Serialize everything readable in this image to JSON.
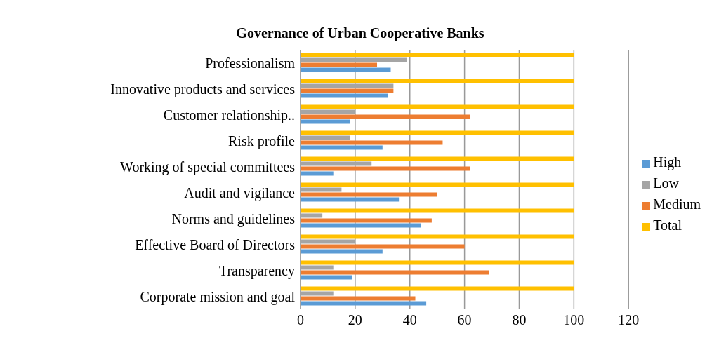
{
  "chart_data": {
    "type": "bar",
    "orientation": "horizontal",
    "title": "Governance of Urban Cooperative Banks",
    "categories": [
      "Professionalism",
      "Innovative products and services",
      "Customer relationship..",
      "Risk profile",
      "Working of special committees",
      "Audit and vigilance",
      "Norms and guidelines",
      "Effective Board of Directors",
      "Transparency",
      "Corporate mission and goal"
    ],
    "series": [
      {
        "name": "Total",
        "color": "#ffc000",
        "values": [
          100,
          100,
          100,
          100,
          100,
          100,
          100,
          100,
          100,
          100
        ]
      },
      {
        "name": "Low",
        "color": "#a5a5a5",
        "values": [
          39,
          34,
          20,
          18,
          26,
          15,
          8,
          20,
          12,
          12
        ]
      },
      {
        "name": "Medium",
        "color": "#ed7d31",
        "values": [
          28,
          34,
          62,
          52,
          62,
          50,
          48,
          60,
          69,
          42
        ]
      },
      {
        "name": "High",
        "color": "#5b9bd5",
        "values": [
          33,
          32,
          18,
          30,
          12,
          36,
          44,
          30,
          19,
          46
        ]
      }
    ],
    "xlim": [
      0,
      120
    ],
    "xticks": [
      0,
      20,
      40,
      60,
      80,
      100,
      120
    ],
    "grid": "x",
    "legend": "right"
  }
}
